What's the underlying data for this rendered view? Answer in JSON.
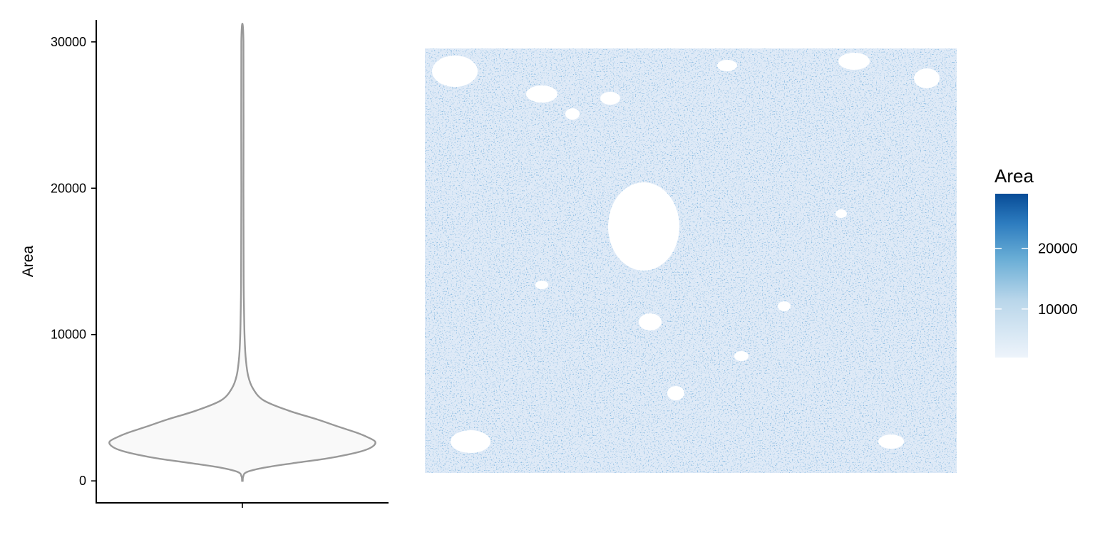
{
  "chart_data": [
    {
      "type": "violin",
      "title": "",
      "xlabel": "",
      "ylabel": "Area",
      "ylim": [
        -1500,
        31500
      ],
      "y_ticks": [
        0,
        10000,
        20000,
        30000
      ],
      "y_tick_labels": [
        "0",
        "10000",
        "20000",
        "30000"
      ],
      "x_ticks": [
        ""
      ],
      "grid": false,
      "colors": {
        "outline": "#999999",
        "fill": "#f9f9f9"
      },
      "density": [
        {
          "y": 0,
          "half_width": 0.5
        },
        {
          "y": 300,
          "half_width": 1.2
        },
        {
          "y": 600,
          "half_width": 6
        },
        {
          "y": 900,
          "half_width": 30
        },
        {
          "y": 1200,
          "half_width": 70
        },
        {
          "y": 1500,
          "half_width": 115
        },
        {
          "y": 1800,
          "half_width": 148
        },
        {
          "y": 2100,
          "half_width": 172
        },
        {
          "y": 2400,
          "half_width": 184
        },
        {
          "y": 2700,
          "half_width": 186
        },
        {
          "y": 3000,
          "half_width": 175
        },
        {
          "y": 3300,
          "half_width": 160
        },
        {
          "y": 3700,
          "half_width": 135
        },
        {
          "y": 4200,
          "half_width": 105
        },
        {
          "y": 4800,
          "half_width": 65
        },
        {
          "y": 5500,
          "half_width": 30
        },
        {
          "y": 6300,
          "half_width": 15
        },
        {
          "y": 7200,
          "half_width": 8
        },
        {
          "y": 8500,
          "half_width": 4.5
        },
        {
          "y": 10000,
          "half_width": 3
        },
        {
          "y": 12000,
          "half_width": 2.2
        },
        {
          "y": 14000,
          "half_width": 1.8
        },
        {
          "y": 20000,
          "half_width": 1.5
        },
        {
          "y": 30000,
          "half_width": 1.5
        }
      ]
    },
    {
      "type": "heatmap",
      "title": "",
      "xlabel": "",
      "ylabel": "",
      "description_colors": {
        "low": "#deebf7",
        "high": "#08519c"
      },
      "legend": {
        "title": "Area",
        "position": "right",
        "range": [
          2000,
          29000
        ],
        "ticks": [
          10000,
          20000
        ],
        "tick_labels": [
          "10000",
          "20000"
        ]
      }
    }
  ]
}
